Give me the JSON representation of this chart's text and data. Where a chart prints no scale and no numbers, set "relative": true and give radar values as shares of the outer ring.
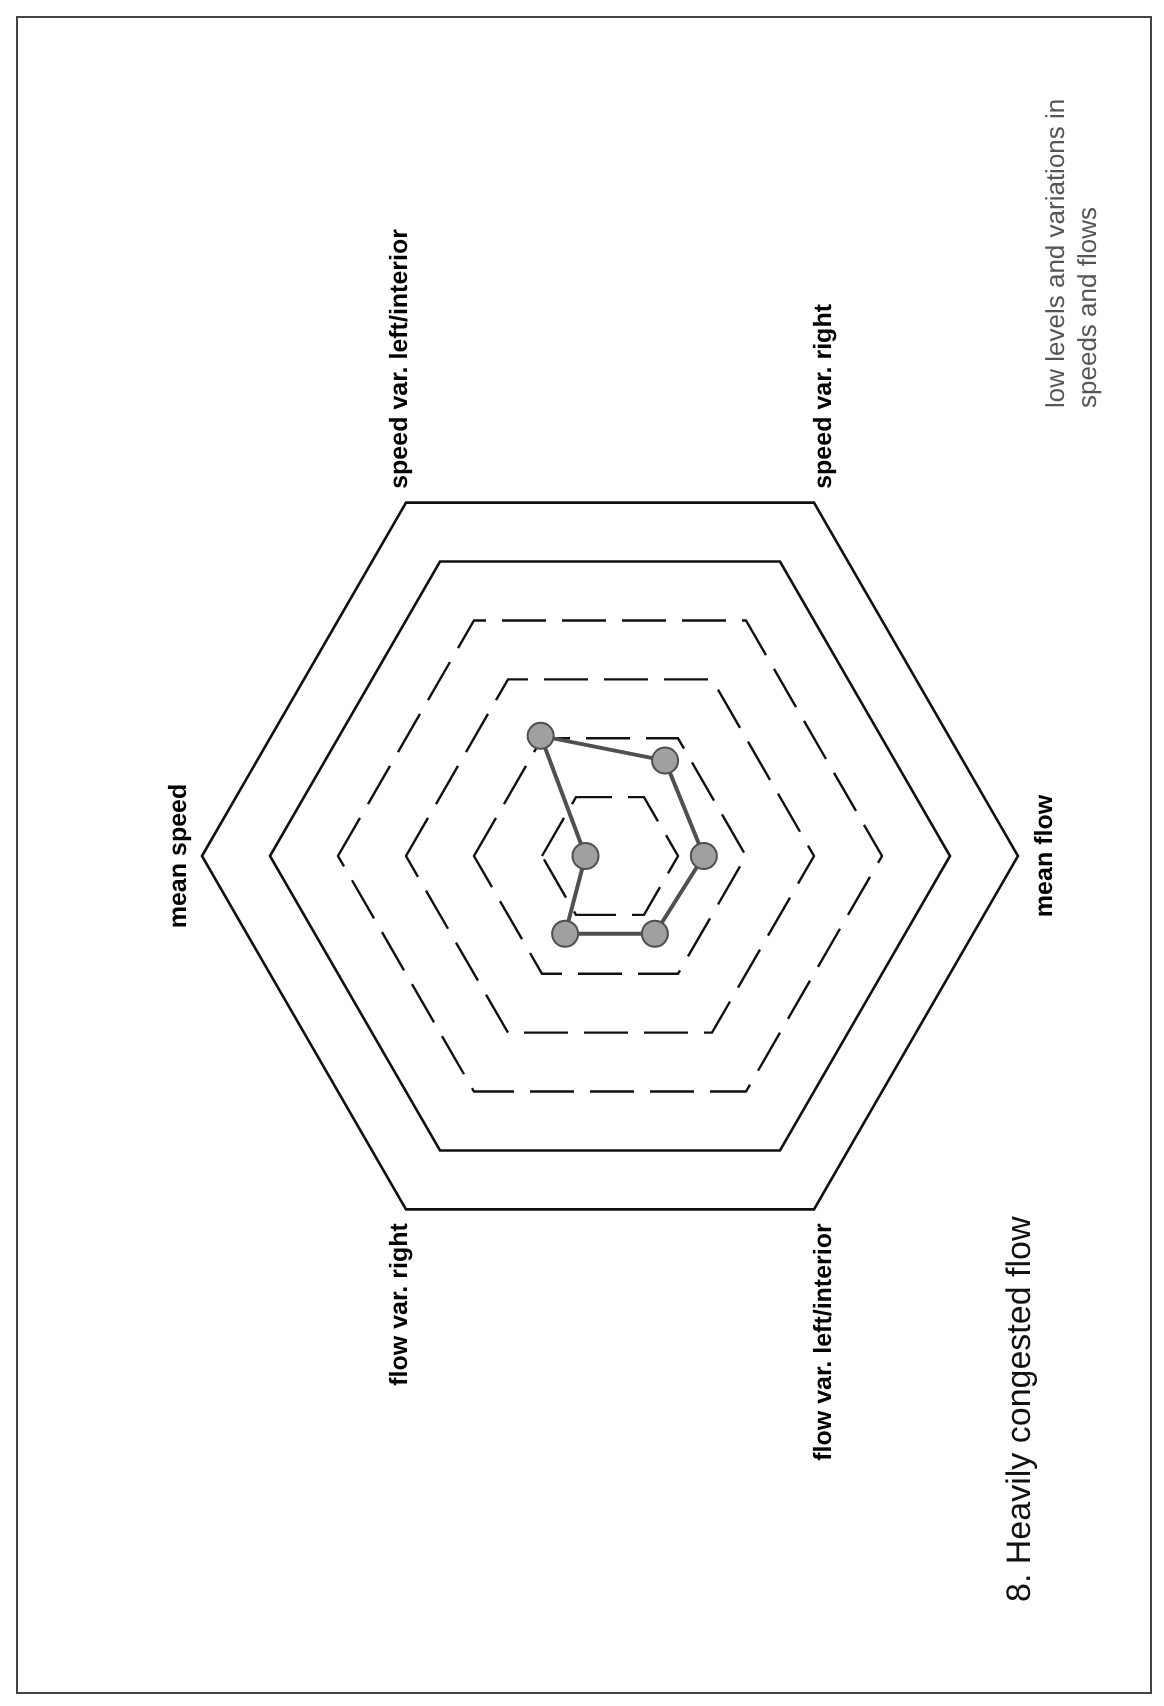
{
  "chart_data": {
    "type": "radar",
    "title": "8. Heavily congested flow",
    "annotations": [
      "low levels and variations in speeds and flows"
    ],
    "categories": [
      "mean speed",
      "speed var. left/interior",
      "speed var. right",
      "mean flow",
      "flow var. left/interior",
      "flow var. right"
    ],
    "relative": true,
    "grid": true,
    "marker": "circle",
    "series": [
      {
        "color": "#505050",
        "values": [
          0.06,
          0.34,
          0.27,
          0.23,
          0.22,
          0.22
        ]
      }
    ]
  }
}
